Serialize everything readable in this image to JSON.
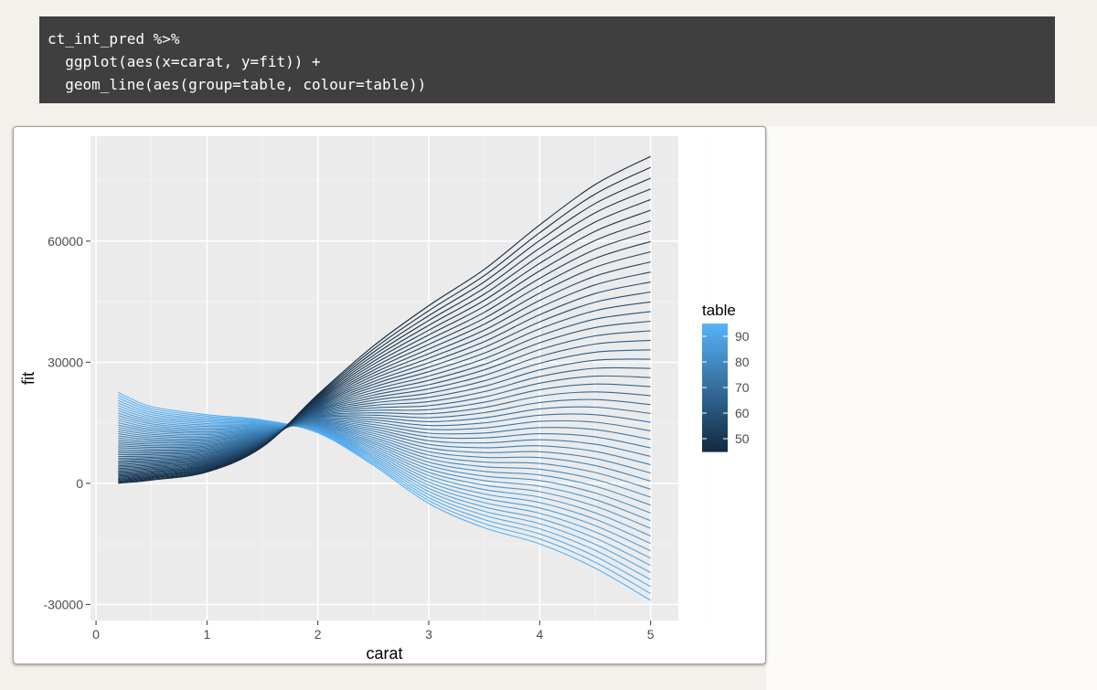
{
  "code": {
    "lines": [
      "ct_int_pred %>%",
      "  ggplot(aes(x=carat, y=fit)) +",
      "  geom_line(aes(group=table, colour=table))"
    ]
  },
  "colors": {
    "panel_bg": "#ebebeb",
    "grid_major": "#ffffff",
    "low": "#132b43",
    "high": "#56b1f7",
    "code_bg": "#3f3f3f"
  },
  "chart_data": {
    "type": "line",
    "xlabel": "carat",
    "ylabel": "fit",
    "xlim": [
      -0.05,
      5.25
    ],
    "ylim": [
      -34000,
      86000
    ],
    "x_ticks": [
      0,
      1,
      2,
      3,
      4,
      5
    ],
    "x_tick_labels": [
      "0",
      "1",
      "2",
      "3",
      "4",
      "5"
    ],
    "y_ticks": [
      -30000,
      0,
      30000,
      60000
    ],
    "y_tick_labels": [
      "-30000",
      "0",
      "30000",
      "60000"
    ],
    "x": [
      0.2,
      0.5,
      1.0,
      1.5,
      2.0,
      2.5,
      3.0,
      3.5,
      4.0,
      4.5,
      5.0
    ],
    "grid": true,
    "legend": {
      "title": "table",
      "position": "right",
      "range": [
        45,
        95
      ],
      "breaks": [
        50,
        60,
        70,
        80,
        90
      ],
      "break_labels": [
        "50",
        "60",
        "70",
        "80",
        "90"
      ]
    },
    "table_range": [
      45,
      95
    ],
    "series_count": 51,
    "series_profiles": {
      "lowest_table": {
        "table": 45,
        "values": [
          0,
          800,
          2800,
          9000,
          22000,
          34000,
          44000,
          53000,
          64000,
          74000,
          81000
        ]
      },
      "middle_table": {
        "table": 70,
        "values": [
          5500,
          6500,
          7500,
          11000,
          15500,
          14500,
          13000,
          14000,
          15500,
          15000,
          13000
        ]
      },
      "highest_table": {
        "table": 95,
        "values": [
          22500,
          19000,
          17000,
          15700,
          12500,
          4500,
          -5000,
          -11000,
          -15000,
          -21000,
          -29000
        ]
      }
    }
  }
}
